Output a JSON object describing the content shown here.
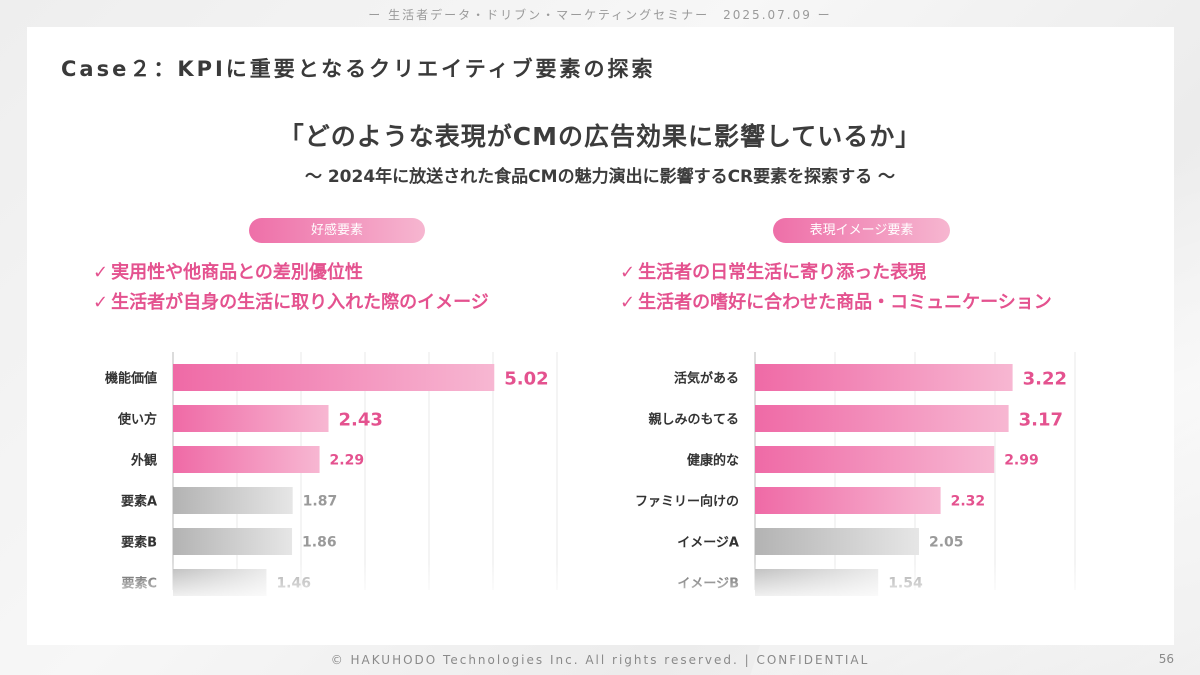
{
  "header": "ー 生活者データ・ドリブン・マーケティングセミナー　2025.07.09 ー",
  "case_title": "Case２：KPIに重要となるクリエイティブ要素の探索",
  "main_question": "「どのような表現がCMの広告効果に影響しているか」",
  "sub_question": "〜 2024年に放送された食品CMの魅力演出に影響するCR要素を探索する 〜",
  "left": {
    "pill": "好感要素",
    "check_mark": "✓",
    "points": [
      "実用性や他商品との差別優位性",
      "生活者が自身の生活に取り入れた際のイメージ"
    ]
  },
  "right": {
    "pill": "表現イメージ要素",
    "check_mark": "✓",
    "points": [
      "生活者の日常生活に寄り添った表現",
      "生活者の嗜好に合わせた商品・コミュニケーション"
    ]
  },
  "chart_data": [
    {
      "type": "bar",
      "orientation": "horizontal",
      "categories": [
        "機能価値",
        "使い方",
        "外観",
        "要素A",
        "要素B",
        "要素C"
      ],
      "values": [
        5.02,
        2.43,
        2.29,
        1.87,
        1.86,
        1.46
      ],
      "highlighted": [
        true,
        true,
        true,
        false,
        false,
        false
      ],
      "xlim": [
        0,
        6
      ],
      "grid": true
    },
    {
      "type": "bar",
      "orientation": "horizontal",
      "categories": [
        "活気がある",
        "親しみのもてる",
        "健康的な",
        "ファミリー向けの",
        "イメージA",
        "イメージB"
      ],
      "values": [
        3.22,
        3.17,
        2.99,
        2.32,
        2.05,
        1.54
      ],
      "highlighted": [
        true,
        true,
        true,
        true,
        false,
        false
      ],
      "xlim": [
        0,
        4
      ],
      "grid": true
    }
  ],
  "colors": {
    "accent_pink": "#e4528f",
    "bar_pink_start": "#ef6aa6",
    "bar_pink_end": "#f7b7d2",
    "bar_gray_start": "#b3b3b3",
    "bar_gray_end": "#e6e6e6",
    "value_gray": "#9a9a9a"
  },
  "footer": "© HAKUHODO Technologies Inc. All rights reserved. | CONFIDENTIAL",
  "page_number": "56"
}
